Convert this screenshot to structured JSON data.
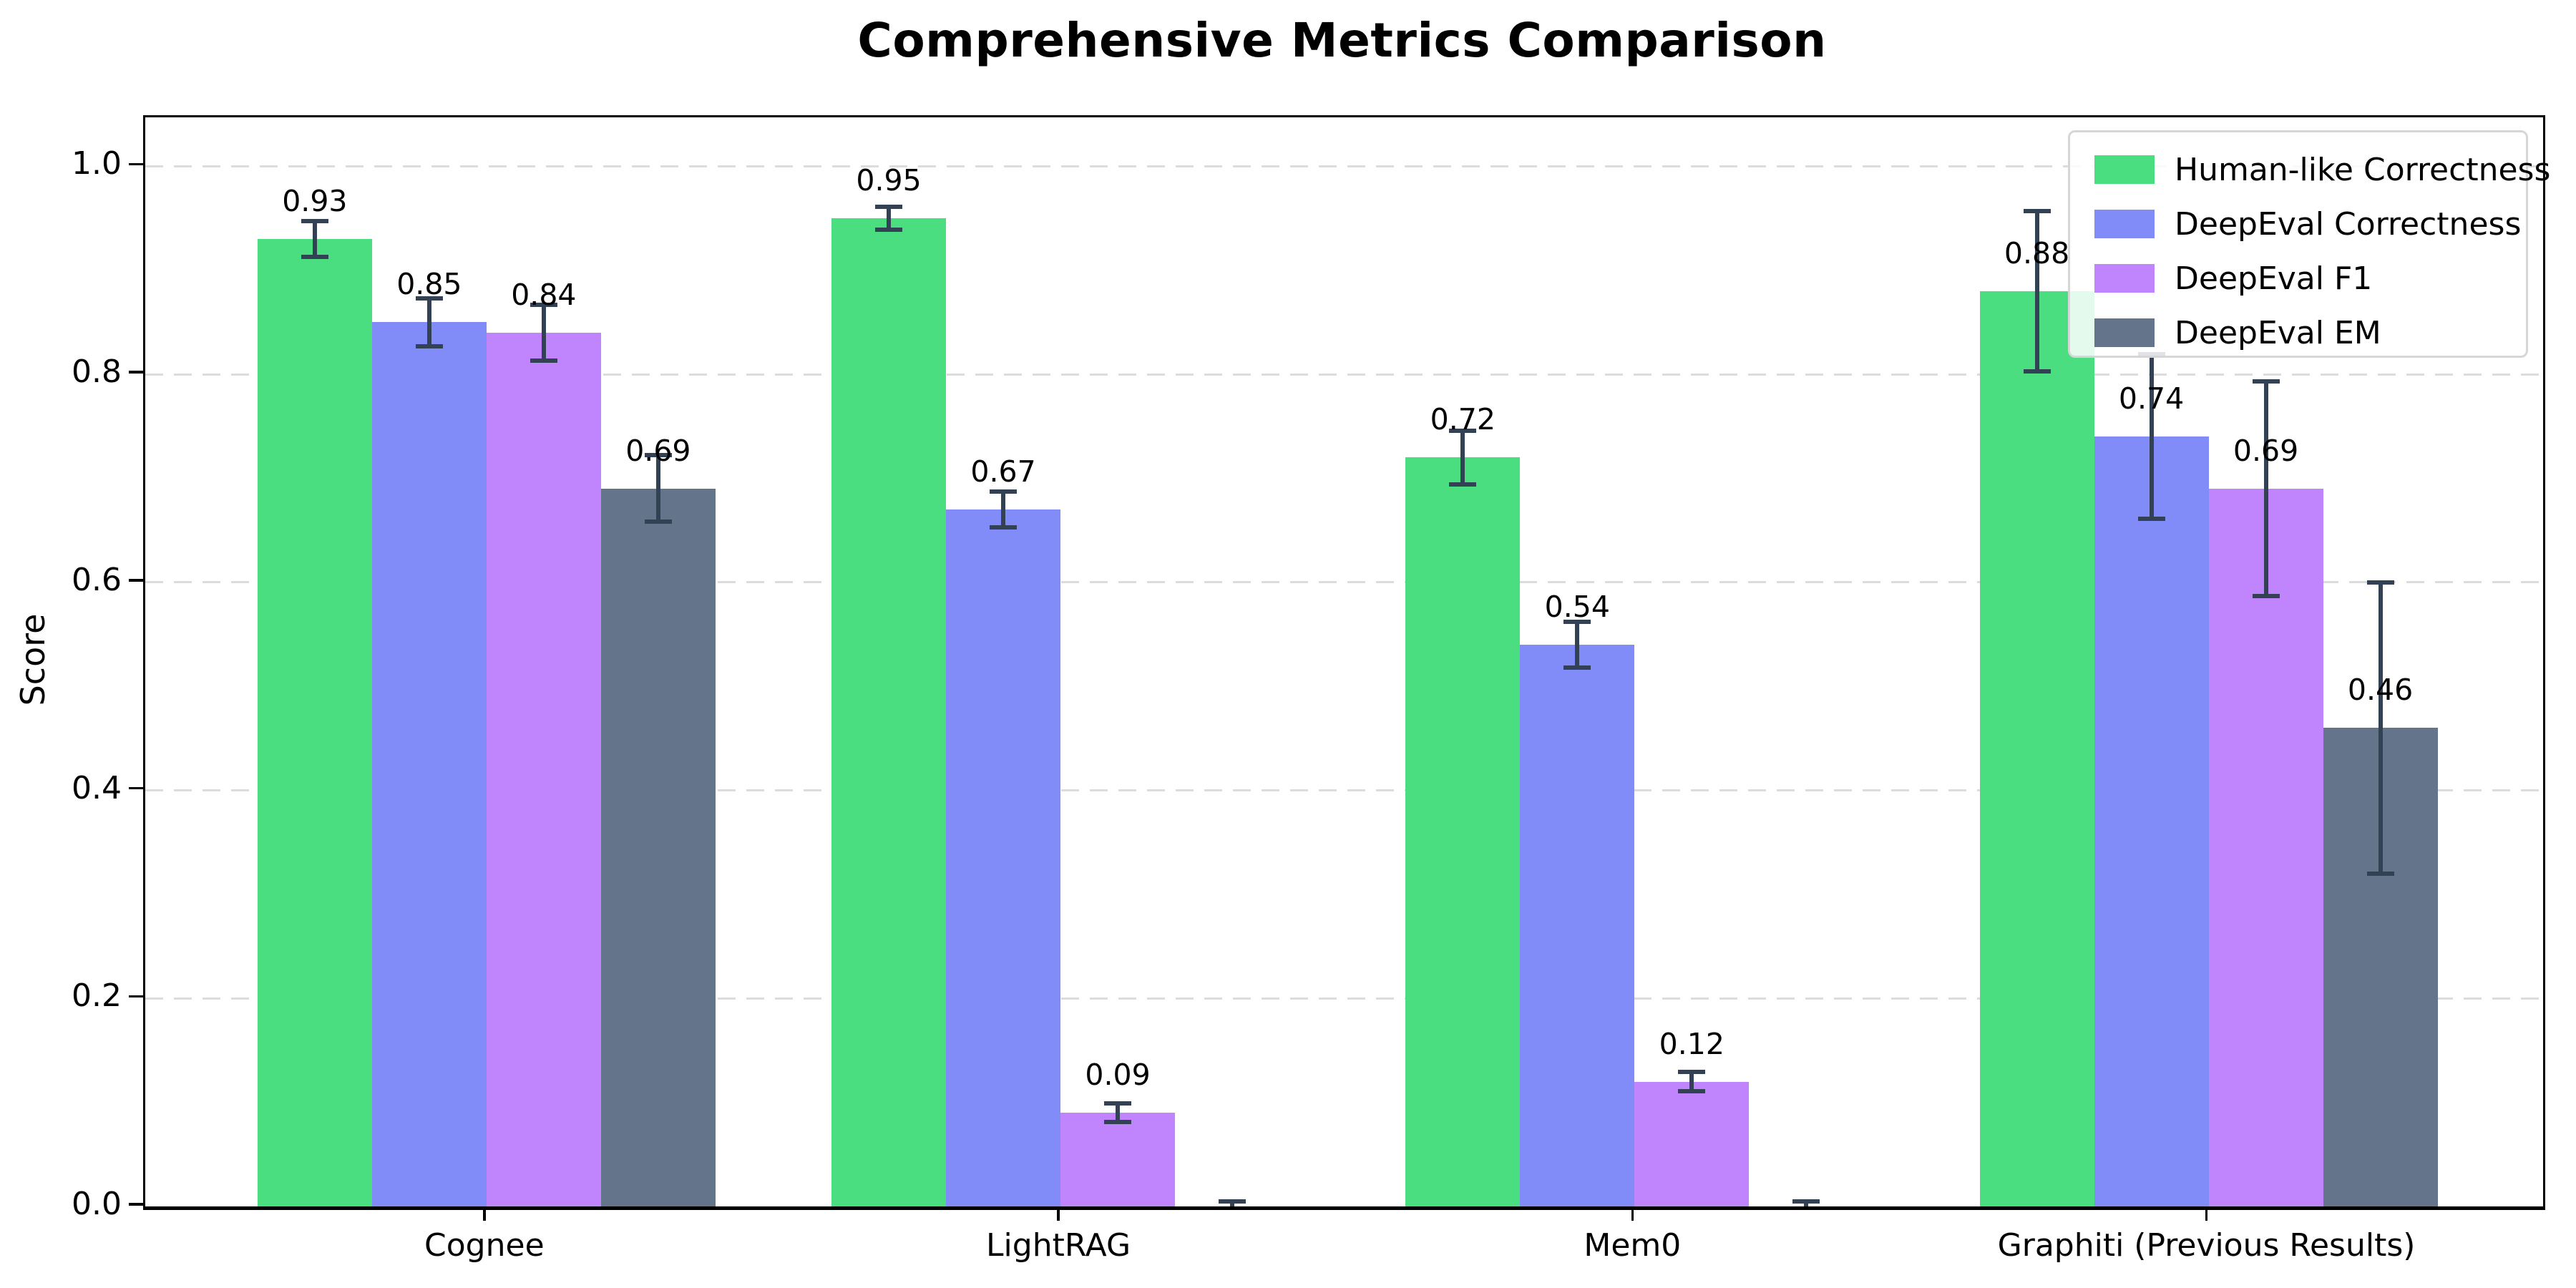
{
  "chart_data": {
    "type": "bar",
    "title": "Comprehensive Metrics Comparison",
    "xlabel": "",
    "ylabel": "Score",
    "categories": [
      "Cognee",
      "LightRAG",
      "Mem0",
      "Graphiti (Previous Results)"
    ],
    "series": [
      {
        "name": "Human-like Correctness",
        "color": "#4ade80",
        "values": [
          0.93,
          0.95,
          0.72,
          0.88
        ],
        "errors": [
          0.017,
          0.011,
          0.026,
          0.077
        ],
        "bar_labels": [
          "0.93",
          "0.95",
          "0.72",
          "0.88"
        ]
      },
      {
        "name": "DeepEval Correctness",
        "color": "#818cf8",
        "values": [
          0.85,
          0.67,
          0.54,
          0.74
        ],
        "errors": [
          0.023,
          0.017,
          0.022,
          0.079
        ],
        "bar_labels": [
          "0.85",
          "0.67",
          "0.54",
          "0.74"
        ]
      },
      {
        "name": "DeepEval F1",
        "color": "#c084fc",
        "values": [
          0.84,
          0.09,
          0.12,
          0.69
        ],
        "errors": [
          0.027,
          0.009,
          0.009,
          0.103
        ],
        "bar_labels": [
          "0.84",
          "0.09",
          "0.12",
          "0.69"
        ]
      },
      {
        "name": "DeepEval EM",
        "color": "#64748b",
        "values": [
          0.69,
          0.0,
          0.0,
          0.46
        ],
        "errors": [
          0.032,
          0.005,
          0.005,
          0.14
        ],
        "bar_labels": [
          "0.69",
          "",
          "",
          "0.46"
        ]
      }
    ],
    "ylim": [
      0,
      1.047
    ],
    "yticks": [
      "0.0",
      "0.2",
      "0.4",
      "0.6",
      "0.8",
      "1.0"
    ],
    "grid": "horizontal dashed",
    "gridline_color": "#dcdcdc",
    "error_bar_color": "#334155",
    "legend_position": "upper right"
  }
}
